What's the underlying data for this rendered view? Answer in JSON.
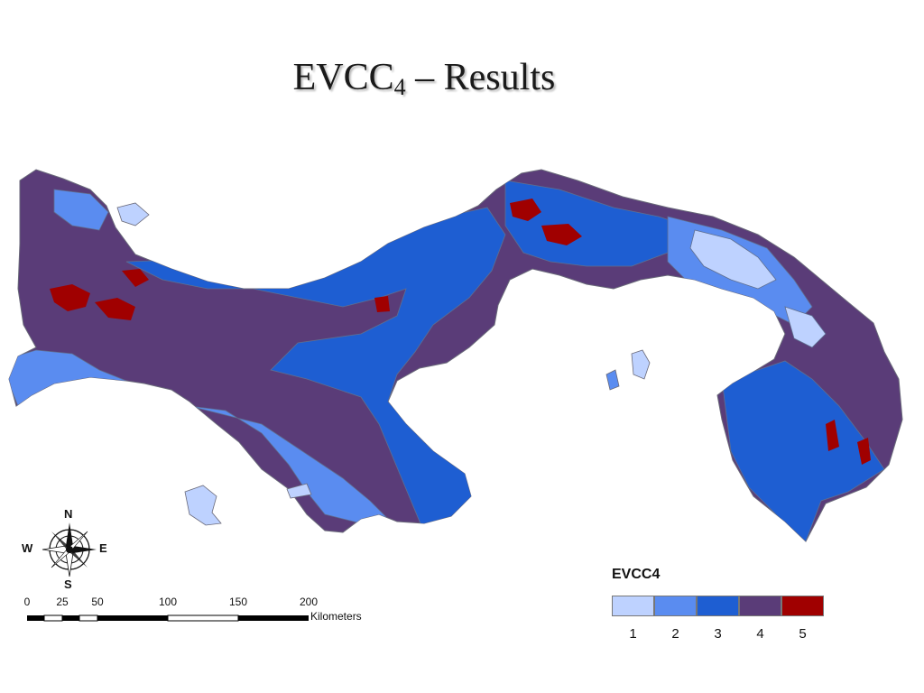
{
  "title": {
    "main": "EVCC",
    "sub": "4",
    "rest": " – Results"
  },
  "compass": {
    "n": "N",
    "s": "S",
    "e": "E",
    "w": "W",
    "icon": "compass-rose-icon"
  },
  "scale": {
    "ticks": [
      "0",
      "25",
      "50",
      "100",
      "150",
      "200"
    ],
    "unit": "Kilometers"
  },
  "legend": {
    "title": "EVCC4",
    "classes": [
      {
        "label": "1",
        "color": "#bed2ff"
      },
      {
        "label": "2",
        "color": "#5a8cf0"
      },
      {
        "label": "3",
        "color": "#1e5ed2"
      },
      {
        "label": "4",
        "color": "#5a3c78"
      },
      {
        "label": "5",
        "color": "#a00000"
      }
    ]
  }
}
